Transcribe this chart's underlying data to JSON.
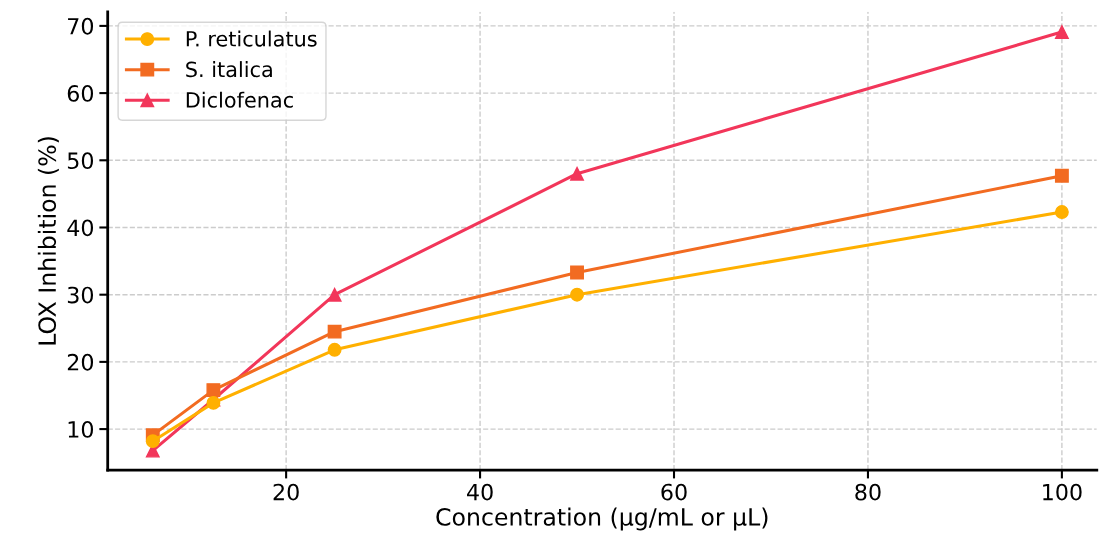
{
  "chart_data": {
    "type": "line",
    "xlabel": "Concentration (µg/mL or µL)",
    "ylabel": "LOX Inhibition (%)",
    "x": [
      6.25,
      12.5,
      25,
      50,
      100
    ],
    "series": [
      {
        "name": "P. reticulatus",
        "color": "#ffb000",
        "marker": "circle",
        "values": [
          8.2,
          13.9,
          21.8,
          30,
          42.3
        ]
      },
      {
        "name": "S. italica",
        "color": "#f26b21",
        "marker": "square",
        "values": [
          9.1,
          15.8,
          24.5,
          33.3,
          47.7
        ]
      },
      {
        "name": "Diclofenac",
        "color": "#f2365a",
        "marker": "triangle",
        "values": [
          6.8,
          14.4,
          30,
          48,
          69.1
        ]
      }
    ],
    "xlim": [
      1.6,
      103.6
    ],
    "ylim": [
      3.9,
      72.1
    ],
    "xticks": [
      20,
      40,
      60,
      80,
      100
    ],
    "yticks": [
      10,
      20,
      30,
      40,
      50,
      60,
      70
    ],
    "grid": true,
    "legend": "top left",
    "line_style": "solid"
  }
}
